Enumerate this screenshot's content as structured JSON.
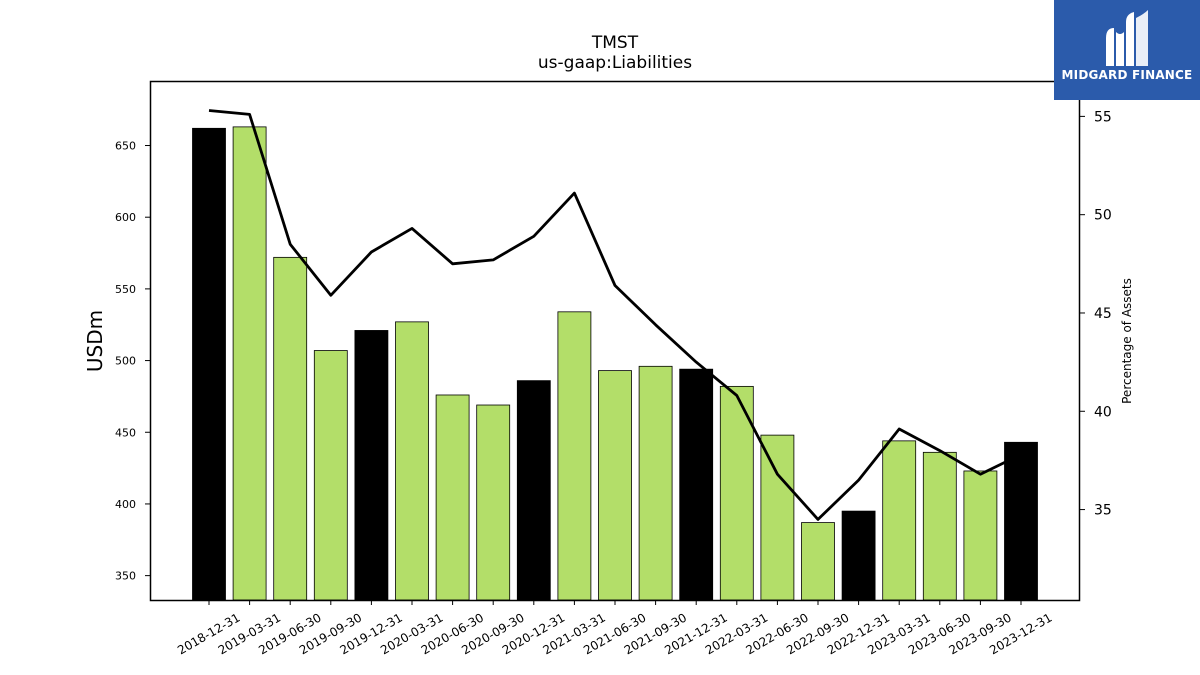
{
  "chart_data": {
    "type": "bar",
    "title": "TMST",
    "subtitle": "us-gaap:Liabilities",
    "ylabel": "USDm",
    "y2label": "Percentage of Assets",
    "ylim": [
      333,
      695
    ],
    "y2lim": [
      30.4,
      56.8
    ],
    "yticks": [
      350,
      400,
      450,
      500,
      550,
      600,
      650
    ],
    "y2ticks": [
      35,
      40,
      45,
      50,
      55
    ],
    "categories": [
      "2018-12-31",
      "2019-03-31",
      "2019-06-30",
      "2019-09-30",
      "2019-12-31",
      "2020-03-31",
      "2020-06-30",
      "2020-09-30",
      "2020-12-31",
      "2021-03-31",
      "2021-06-30",
      "2021-09-30",
      "2021-12-31",
      "2022-03-31",
      "2022-06-30",
      "2022-09-30",
      "2022-12-31",
      "2023-03-31",
      "2023-06-30",
      "2023-09-30",
      "2023-12-31"
    ],
    "series": [
      {
        "kind": "bar",
        "values": [
          662,
          663,
          572,
          507,
          521,
          527,
          476,
          469,
          486,
          534,
          493,
          496,
          494,
          482,
          448,
          387,
          395,
          444,
          436,
          423,
          443
        ],
        "colors": [
          "#000000",
          "#b3de69",
          "#b3de69",
          "#b3de69",
          "#000000",
          "#b3de69",
          "#b3de69",
          "#b3de69",
          "#000000",
          "#b3de69",
          "#b3de69",
          "#b3de69",
          "#000000",
          "#b3de69",
          "#b3de69",
          "#b3de69",
          "#000000",
          "#b3de69",
          "#b3de69",
          "#b3de69",
          "#000000"
        ]
      },
      {
        "kind": "line",
        "axis": "right",
        "color": "#000000",
        "values": [
          55.3,
          55.1,
          48.5,
          45.9,
          48.1,
          49.3,
          47.5,
          47.7,
          48.9,
          51.1,
          46.4,
          44.4,
          42.5,
          40.8,
          36.8,
          34.5,
          36.5,
          39.1,
          38.0,
          36.8,
          37.8
        ]
      }
    ]
  },
  "logo": {
    "name": "MIDGARD FINANCE",
    "bg_color": "#2b5bab"
  }
}
